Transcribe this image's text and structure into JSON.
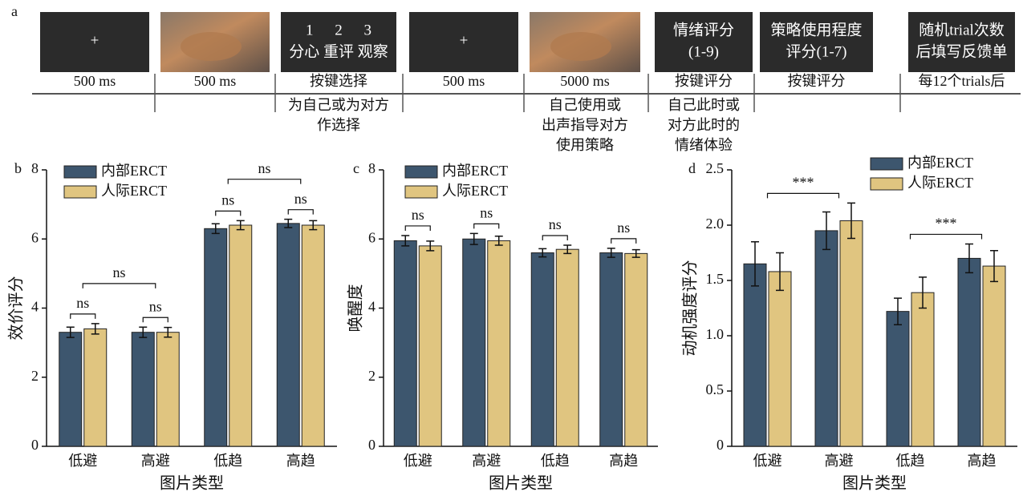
{
  "procedure": {
    "label": "a",
    "steps": [
      {
        "box": [
          "+"
        ],
        "duration": "500 ms"
      },
      {
        "duration": "500 ms"
      },
      {
        "box": [
          "1 2 3",
          "分心 重评 观察"
        ],
        "duration": "按键选择",
        "note": [
          "为自己或为对方",
          "作选择"
        ]
      },
      {
        "box": [
          "+"
        ],
        "duration": "500 ms"
      },
      {
        "duration": "5000 ms",
        "note": [
          "自己使用或",
          "出声指导对方",
          "使用策略"
        ]
      },
      {
        "box": [
          "情绪评分",
          "(1-9)"
        ],
        "duration": "按键评分",
        "note": [
          "自己此时或",
          "对方此时的",
          "情绪体验"
        ]
      },
      {
        "box": [
          "策略使用程度",
          "评分(1-7)"
        ],
        "duration": "按键评分"
      },
      {
        "box": [
          "随机trial次数",
          "后填写反馈单"
        ],
        "duration": "每12个trials后"
      }
    ]
  },
  "chart_data": [
    {
      "type": "bar",
      "panel": "b",
      "xlabel": "图片类型",
      "ylabel": "效价评分",
      "categories": [
        "低避",
        "高避",
        "低趋",
        "高趋"
      ],
      "series": [
        {
          "name": "内部ERCT",
          "color": "#3d566e",
          "values": [
            3.3,
            3.3,
            6.3,
            6.45
          ],
          "errors": [
            0.15,
            0.15,
            0.14,
            0.12
          ]
        },
        {
          "name": "人际ERCT",
          "color": "#e0c580",
          "values": [
            3.4,
            3.3,
            6.4,
            6.4
          ],
          "errors": [
            0.15,
            0.14,
            0.13,
            0.13
          ]
        }
      ],
      "ylim": [
        0,
        8
      ],
      "yticks": [
        0,
        2,
        4,
        6,
        8
      ],
      "annotations": [
        "ns",
        "ns",
        "ns",
        "ns",
        "ns",
        "ns"
      ]
    },
    {
      "type": "bar",
      "panel": "c",
      "xlabel": "图片类型",
      "ylabel": "唤醒度",
      "categories": [
        "低避",
        "高避",
        "低趋",
        "高趋"
      ],
      "series": [
        {
          "name": "内部ERCT",
          "color": "#3d566e",
          "values": [
            5.95,
            6.0,
            5.6,
            5.6
          ],
          "errors": [
            0.15,
            0.16,
            0.12,
            0.13
          ]
        },
        {
          "name": "人际ERCT",
          "color": "#e0c580",
          "values": [
            5.8,
            5.95,
            5.7,
            5.58
          ],
          "errors": [
            0.14,
            0.13,
            0.12,
            0.11
          ]
        }
      ],
      "ylim": [
        0,
        8
      ],
      "yticks": [
        0,
        2,
        4,
        6,
        8
      ],
      "annotations": [
        "ns",
        "ns",
        "ns",
        "ns"
      ]
    },
    {
      "type": "bar",
      "panel": "d",
      "xlabel": "图片类型",
      "ylabel": "动机强度评分",
      "categories": [
        "低避",
        "高避",
        "低趋",
        "高趋"
      ],
      "series": [
        {
          "name": "内部ERCT",
          "color": "#3d566e",
          "values": [
            1.65,
            1.95,
            1.22,
            1.7
          ],
          "errors": [
            0.2,
            0.17,
            0.12,
            0.13
          ]
        },
        {
          "name": "人际ERCT",
          "color": "#e0c580",
          "values": [
            1.58,
            2.04,
            1.39,
            1.63
          ],
          "errors": [
            0.17,
            0.16,
            0.14,
            0.14
          ]
        }
      ],
      "ylim": [
        0,
        2.5
      ],
      "yticks": [
        0,
        0.5,
        {
          "value": 1,
          "label": "1.0"
        },
        1.5,
        {
          "value": 2,
          "label": "2.0"
        },
        2.5
      ],
      "annotations": [
        "***",
        "***"
      ]
    }
  ]
}
